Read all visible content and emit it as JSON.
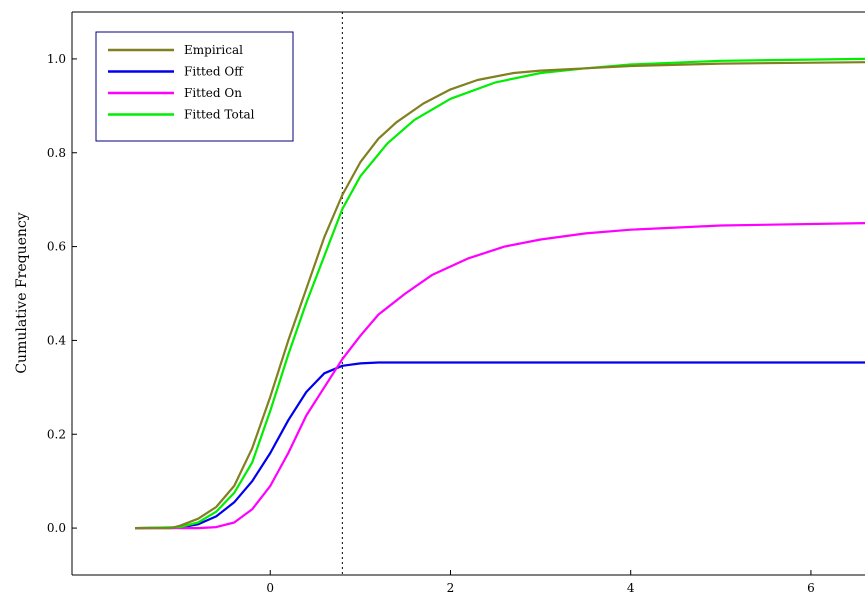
{
  "chart_data": {
    "type": "line",
    "title": "",
    "xlabel": "",
    "ylabel": "Cumulative Frequency",
    "xlim": [
      -2.2,
      6.6
    ],
    "ylim": [
      -0.1,
      1.1
    ],
    "xticks": [
      0,
      2,
      4,
      6
    ],
    "yticks": [
      0.0,
      0.2,
      0.4,
      0.6,
      0.8,
      1.0
    ],
    "xtick_labels": [
      "0",
      "2",
      "4",
      "6"
    ],
    "ytick_labels": [
      "0.0",
      "0.2",
      "0.4",
      "0.6",
      "0.8",
      "1.0"
    ],
    "grid": false,
    "legend_position": "top-left",
    "vline": {
      "x": 0.8,
      "style": "dotted"
    },
    "series": [
      {
        "name": "Empirical",
        "color": "#808020",
        "x": [
          -1.5,
          -1.1,
          -1.0,
          -0.8,
          -0.6,
          -0.4,
          -0.2,
          0.0,
          0.2,
          0.4,
          0.6,
          0.8,
          1.0,
          1.2,
          1.4,
          1.7,
          2.0,
          2.3,
          2.7,
          3.0,
          3.5,
          4.0,
          5.0,
          6.6
        ],
        "y": [
          0.0,
          0.0,
          0.005,
          0.02,
          0.045,
          0.09,
          0.17,
          0.28,
          0.4,
          0.51,
          0.62,
          0.71,
          0.78,
          0.83,
          0.865,
          0.905,
          0.935,
          0.955,
          0.97,
          0.975,
          0.98,
          0.985,
          0.99,
          0.993
        ]
      },
      {
        "name": "Fitted Off",
        "color": "#0000ee",
        "x": [
          -1.5,
          -1.0,
          -0.8,
          -0.6,
          -0.4,
          -0.2,
          0.0,
          0.2,
          0.4,
          0.6,
          0.8,
          1.0,
          1.2,
          2.0,
          4.0,
          6.6
        ],
        "y": [
          0.0,
          0.001,
          0.008,
          0.025,
          0.055,
          0.1,
          0.16,
          0.23,
          0.29,
          0.33,
          0.346,
          0.351,
          0.353,
          0.353,
          0.353,
          0.353
        ]
      },
      {
        "name": "Fitted On",
        "color": "#ff00ff",
        "x": [
          -1.5,
          -0.8,
          -0.6,
          -0.4,
          -0.2,
          0.0,
          0.2,
          0.4,
          0.6,
          0.8,
          1.0,
          1.2,
          1.5,
          1.8,
          2.2,
          2.6,
          3.0,
          3.5,
          4.0,
          5.0,
          6.6
        ],
        "y": [
          0.0,
          0.0,
          0.002,
          0.012,
          0.04,
          0.09,
          0.16,
          0.24,
          0.3,
          0.36,
          0.41,
          0.455,
          0.5,
          0.54,
          0.575,
          0.6,
          0.615,
          0.628,
          0.636,
          0.645,
          0.65
        ]
      },
      {
        "name": "Fitted Total",
        "color": "#00ee00",
        "x": [
          -1.5,
          -1.0,
          -0.8,
          -0.6,
          -0.4,
          -0.2,
          0.0,
          0.2,
          0.4,
          0.6,
          0.8,
          1.0,
          1.3,
          1.6,
          2.0,
          2.5,
          3.0,
          3.5,
          4.0,
          5.0,
          6.6
        ],
        "y": [
          0.0,
          0.002,
          0.012,
          0.035,
          0.075,
          0.14,
          0.25,
          0.37,
          0.48,
          0.58,
          0.68,
          0.75,
          0.82,
          0.87,
          0.915,
          0.95,
          0.97,
          0.98,
          0.988,
          0.996,
          1.0
        ]
      }
    ]
  }
}
